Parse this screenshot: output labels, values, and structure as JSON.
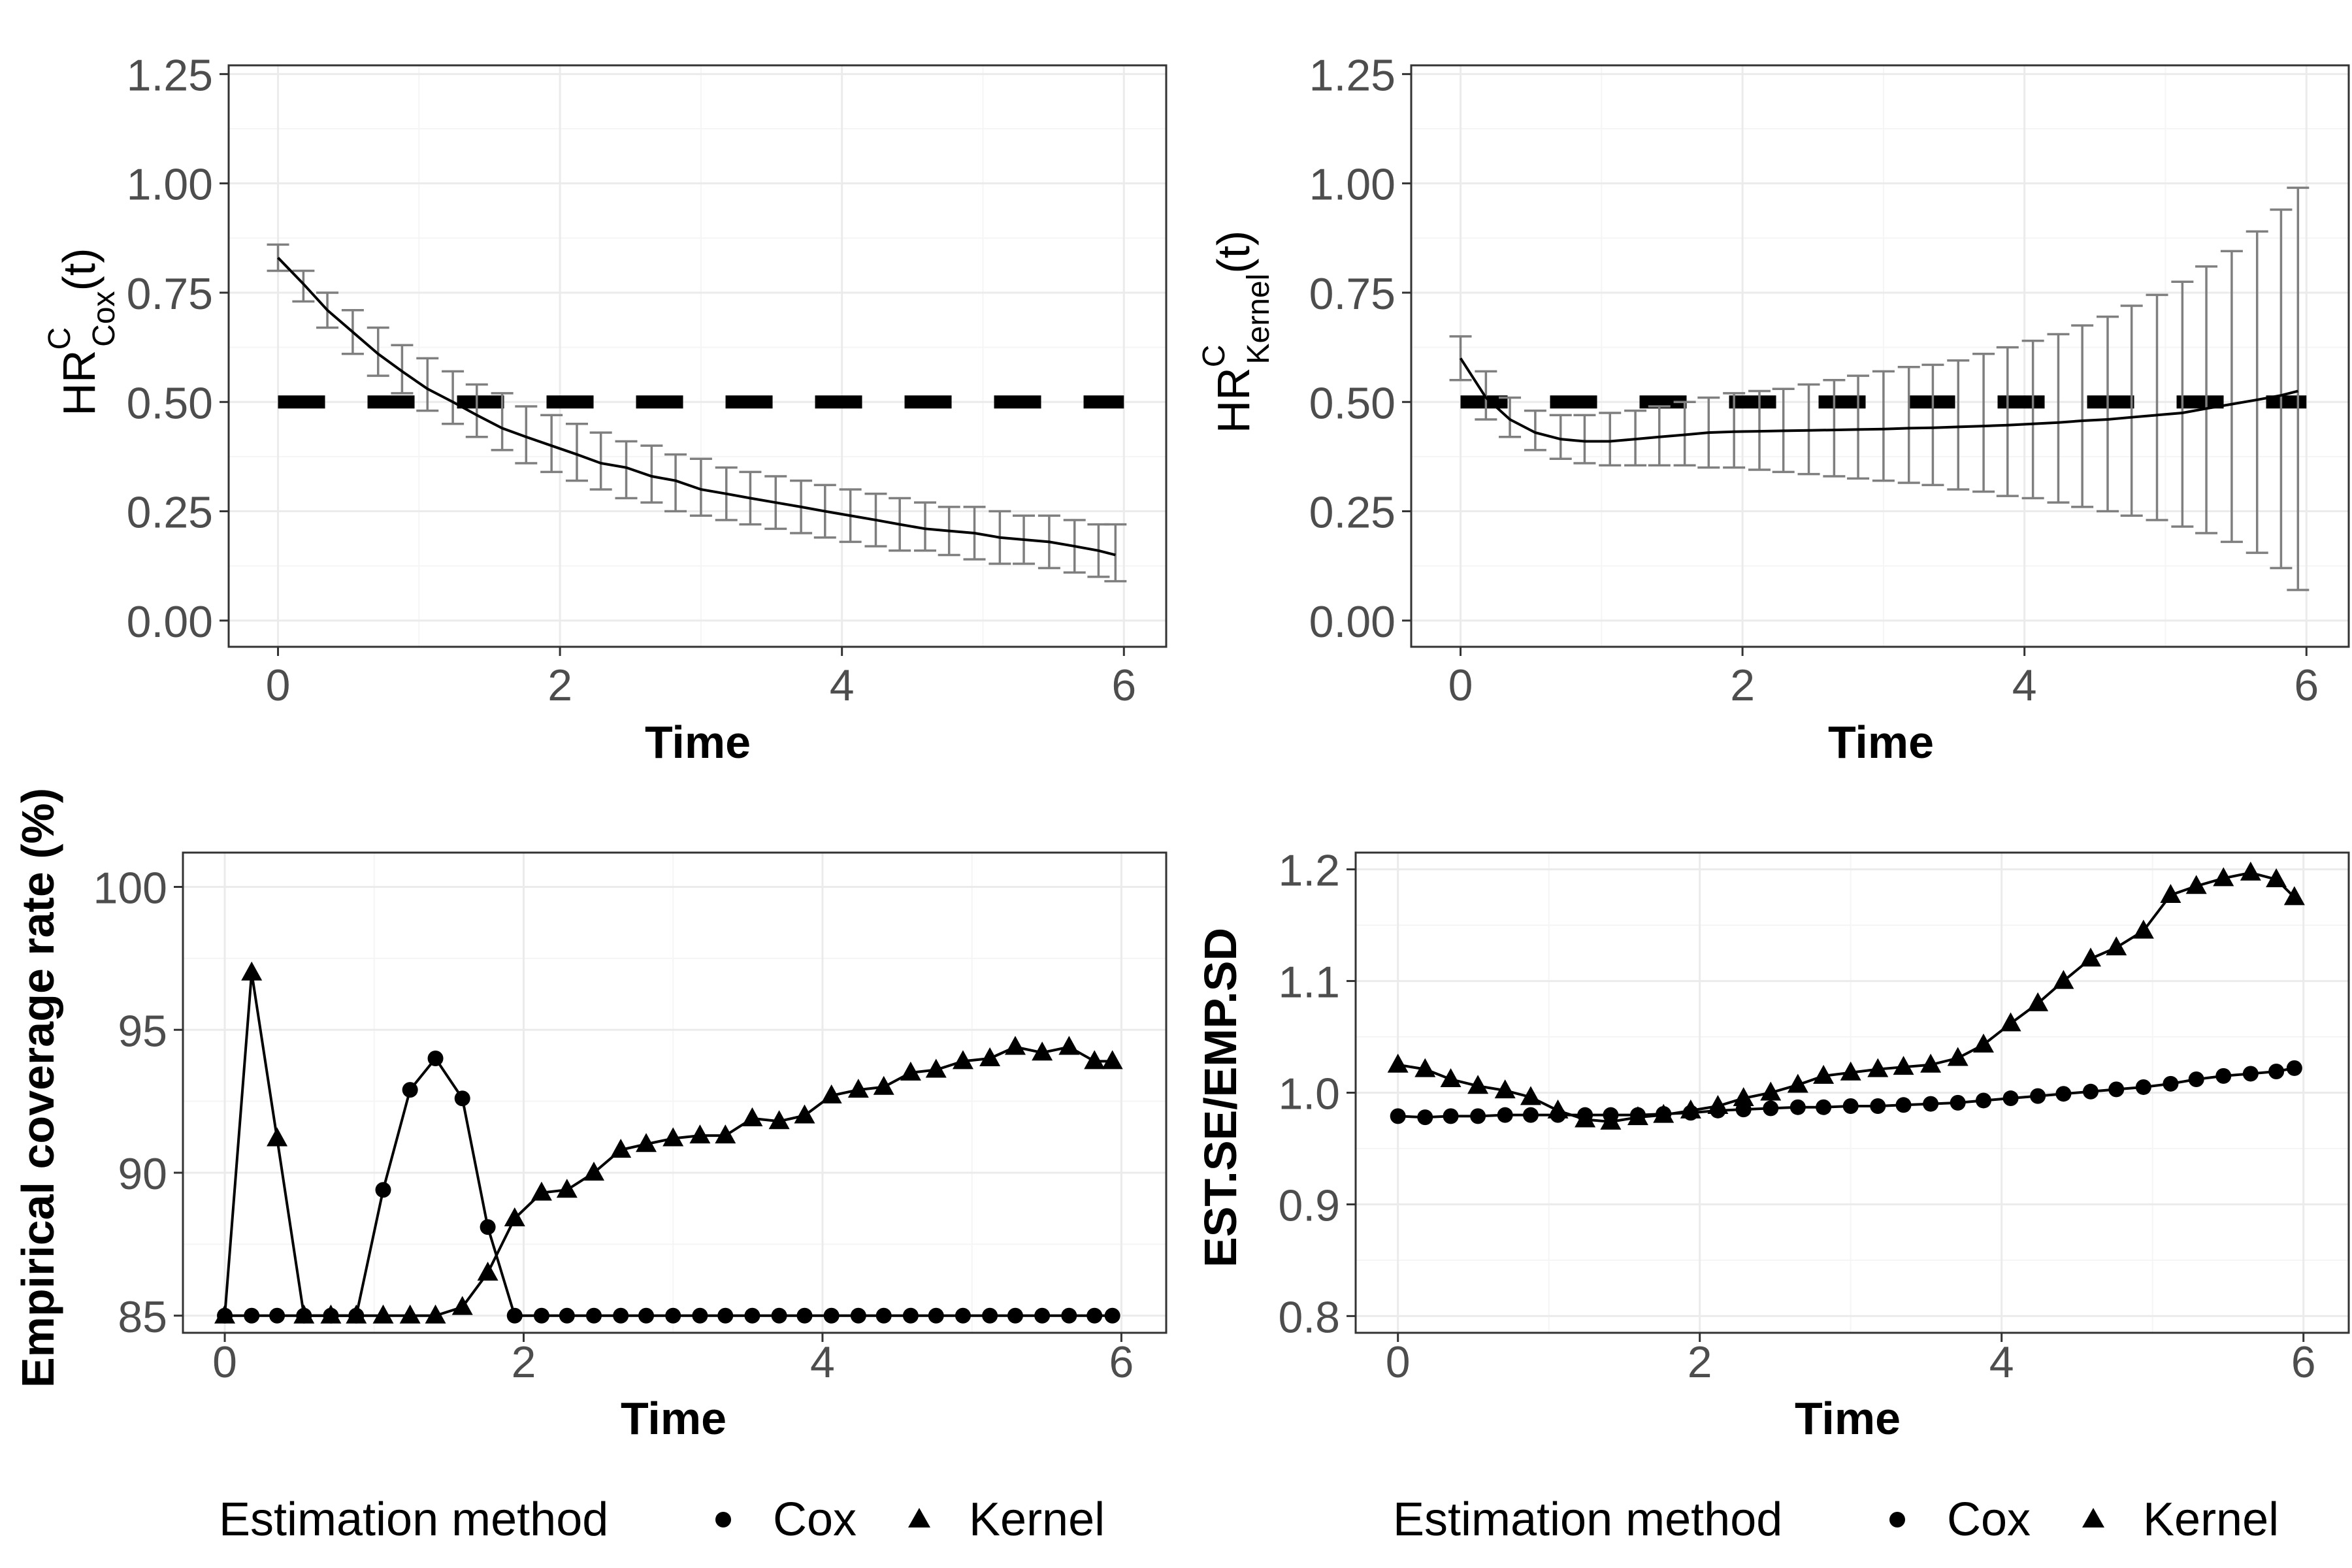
{
  "colors": {
    "line": "#000000",
    "errorbar": "#7f7f7f",
    "grid_major": "#ebebeb",
    "grid_minor": "#f5f5f5",
    "panel_border": "#333333",
    "tick_text": "#4d4d4d",
    "reference": "#000000"
  },
  "chart_data": [
    {
      "type": "line",
      "panel": "top-left",
      "xlabel": "Time",
      "ylabel": {
        "base": "HR",
        "superscript": "C",
        "subscript": "Cox",
        "suffix": "(t)"
      },
      "xlim": [
        -0.35,
        6.3
      ],
      "ylim": [
        -0.06,
        1.27
      ],
      "x_ticks": [
        0,
        2,
        4,
        6
      ],
      "x_tick_labels": [
        "0",
        "2",
        "4",
        "6"
      ],
      "y_ticks": [
        0,
        0.25,
        0.5,
        0.75,
        1.0,
        1.25
      ],
      "y_tick_labels": [
        "0.00",
        "0.25",
        "0.50",
        "0.75",
        "1.00",
        "1.25"
      ],
      "reference_line": 0.5,
      "x": [
        0,
        0.18,
        0.35,
        0.53,
        0.71,
        0.88,
        1.06,
        1.24,
        1.41,
        1.59,
        1.76,
        1.94,
        2.12,
        2.29,
        2.47,
        2.65,
        2.82,
        3.0,
        3.18,
        3.35,
        3.53,
        3.71,
        3.88,
        4.06,
        4.24,
        4.41,
        4.59,
        4.76,
        4.94,
        5.12,
        5.29,
        5.47,
        5.65,
        5.82,
        5.94
      ],
      "series": [
        {
          "name": "estimate",
          "values": [
            0.83,
            0.77,
            0.71,
            0.66,
            0.61,
            0.57,
            0.53,
            0.5,
            0.47,
            0.44,
            0.42,
            0.4,
            0.38,
            0.36,
            0.35,
            0.33,
            0.32,
            0.3,
            0.29,
            0.28,
            0.27,
            0.26,
            0.25,
            0.24,
            0.23,
            0.22,
            0.21,
            0.205,
            0.2,
            0.19,
            0.185,
            0.18,
            0.17,
            0.16,
            0.15
          ]
        },
        {
          "name": "ci_lower",
          "values": [
            0.8,
            0.73,
            0.67,
            0.61,
            0.56,
            0.52,
            0.48,
            0.45,
            0.42,
            0.39,
            0.36,
            0.34,
            0.32,
            0.3,
            0.28,
            0.27,
            0.25,
            0.24,
            0.23,
            0.22,
            0.21,
            0.2,
            0.19,
            0.18,
            0.17,
            0.16,
            0.16,
            0.15,
            0.14,
            0.13,
            0.13,
            0.12,
            0.11,
            0.1,
            0.09
          ]
        },
        {
          "name": "ci_upper",
          "values": [
            0.86,
            0.8,
            0.75,
            0.71,
            0.67,
            0.63,
            0.6,
            0.57,
            0.54,
            0.52,
            0.49,
            0.47,
            0.45,
            0.43,
            0.41,
            0.4,
            0.38,
            0.37,
            0.35,
            0.34,
            0.33,
            0.32,
            0.31,
            0.3,
            0.29,
            0.28,
            0.27,
            0.26,
            0.26,
            0.25,
            0.24,
            0.24,
            0.23,
            0.22,
            0.22
          ]
        }
      ]
    },
    {
      "type": "line",
      "panel": "top-right",
      "xlabel": "Time",
      "ylabel": {
        "base": "HR",
        "superscript": "C",
        "subscript": "Kernel",
        "suffix": "(t)"
      },
      "xlim": [
        -0.35,
        6.3
      ],
      "ylim": [
        -0.06,
        1.27
      ],
      "x_ticks": [
        0,
        2,
        4,
        6
      ],
      "x_tick_labels": [
        "0",
        "2",
        "4",
        "6"
      ],
      "y_ticks": [
        0,
        0.25,
        0.5,
        0.75,
        1.0,
        1.25
      ],
      "y_tick_labels": [
        "0.00",
        "0.25",
        "0.50",
        "0.75",
        "1.00",
        "1.25"
      ],
      "reference_line": 0.5,
      "x": [
        0,
        0.18,
        0.35,
        0.53,
        0.71,
        0.88,
        1.06,
        1.24,
        1.41,
        1.59,
        1.76,
        1.94,
        2.12,
        2.29,
        2.47,
        2.65,
        2.82,
        3.0,
        3.18,
        3.35,
        3.53,
        3.71,
        3.88,
        4.06,
        4.24,
        4.41,
        4.59,
        4.76,
        4.94,
        5.12,
        5.29,
        5.47,
        5.65,
        5.82,
        5.94
      ],
      "series": [
        {
          "name": "estimate",
          "values": [
            0.6,
            0.51,
            0.46,
            0.43,
            0.415,
            0.41,
            0.41,
            0.415,
            0.42,
            0.425,
            0.43,
            0.432,
            0.433,
            0.434,
            0.435,
            0.436,
            0.437,
            0.438,
            0.44,
            0.441,
            0.443,
            0.445,
            0.447,
            0.45,
            0.453,
            0.457,
            0.46,
            0.465,
            0.47,
            0.475,
            0.485,
            0.495,
            0.505,
            0.515,
            0.525
          ]
        },
        {
          "name": "ci_lower",
          "values": [
            0.55,
            0.46,
            0.42,
            0.39,
            0.37,
            0.36,
            0.355,
            0.355,
            0.355,
            0.355,
            0.35,
            0.35,
            0.345,
            0.34,
            0.335,
            0.33,
            0.325,
            0.32,
            0.315,
            0.31,
            0.3,
            0.295,
            0.285,
            0.28,
            0.27,
            0.26,
            0.25,
            0.24,
            0.23,
            0.215,
            0.2,
            0.18,
            0.155,
            0.12,
            0.07
          ]
        },
        {
          "name": "ci_upper",
          "values": [
            0.65,
            0.57,
            0.51,
            0.48,
            0.47,
            0.47,
            0.475,
            0.48,
            0.49,
            0.5,
            0.51,
            0.52,
            0.525,
            0.53,
            0.54,
            0.55,
            0.56,
            0.57,
            0.58,
            0.585,
            0.595,
            0.61,
            0.625,
            0.64,
            0.655,
            0.675,
            0.695,
            0.72,
            0.745,
            0.775,
            0.81,
            0.845,
            0.89,
            0.94,
            0.99
          ]
        }
      ]
    },
    {
      "type": "line",
      "panel": "bottom-left",
      "xlabel": "Time",
      "ylabel": "Empirical coverage rate (%)",
      "xlim": [
        -0.28,
        6.3
      ],
      "ylim": [
        84.4,
        101.2
      ],
      "x_ticks": [
        0,
        2,
        4,
        6
      ],
      "x_tick_labels": [
        "0",
        "2",
        "4",
        "6"
      ],
      "y_ticks": [
        85,
        90,
        95,
        100
      ],
      "y_tick_labels": [
        "85",
        "90",
        "95",
        "100"
      ],
      "x": [
        0,
        0.18,
        0.35,
        0.53,
        0.71,
        0.88,
        1.06,
        1.24,
        1.41,
        1.59,
        1.76,
        1.94,
        2.12,
        2.29,
        2.47,
        2.65,
        2.82,
        3.0,
        3.18,
        3.35,
        3.53,
        3.71,
        3.88,
        4.06,
        4.24,
        4.41,
        4.59,
        4.76,
        4.94,
        5.12,
        5.29,
        5.47,
        5.65,
        5.82,
        5.94
      ],
      "series": [
        {
          "name": "Cox",
          "marker": "circle",
          "values": [
            85.0,
            85.0,
            85.0,
            85.0,
            85.0,
            85.0,
            89.4,
            92.9,
            94.0,
            92.6,
            88.1,
            85.0,
            85.0,
            85.0,
            85.0,
            85.0,
            85.0,
            85.0,
            85.0,
            85.0,
            85.0,
            85.0,
            85.0,
            85.0,
            85.0,
            85.0,
            85.0,
            85.0,
            85.0,
            85.0,
            85.0,
            85.0,
            85.0,
            85.0,
            85.0
          ]
        },
        {
          "name": "Kernel",
          "marker": "triangle",
          "values": [
            85.0,
            97.0,
            91.2,
            85.0,
            85.0,
            85.0,
            85.0,
            85.0,
            85.0,
            85.3,
            86.5,
            88.4,
            89.3,
            89.4,
            90.0,
            90.8,
            91.0,
            91.2,
            91.3,
            91.3,
            91.9,
            91.8,
            92.0,
            92.7,
            92.9,
            93.0,
            93.5,
            93.6,
            93.9,
            94.0,
            94.4,
            94.2,
            94.4,
            93.9,
            93.9
          ]
        }
      ]
    },
    {
      "type": "line",
      "panel": "bottom-right",
      "xlabel": "Time",
      "ylabel": "EST.SE/EMP.SD",
      "xlim": [
        -0.28,
        6.3
      ],
      "ylim": [
        0.785,
        1.215
      ],
      "x_ticks": [
        0,
        2,
        4,
        6
      ],
      "x_tick_labels": [
        "0",
        "2",
        "4",
        "6"
      ],
      "y_ticks": [
        0.8,
        0.9,
        1.0,
        1.1,
        1.2
      ],
      "y_tick_labels": [
        "0.8",
        "0.9",
        "1.0",
        "1.1",
        "1.2"
      ],
      "x": [
        0,
        0.18,
        0.35,
        0.53,
        0.71,
        0.88,
        1.06,
        1.24,
        1.41,
        1.59,
        1.76,
        1.94,
        2.12,
        2.29,
        2.47,
        2.65,
        2.82,
        3.0,
        3.18,
        3.35,
        3.53,
        3.71,
        3.88,
        4.06,
        4.24,
        4.41,
        4.59,
        4.76,
        4.94,
        5.12,
        5.29,
        5.47,
        5.65,
        5.82,
        5.94
      ],
      "series": [
        {
          "name": "Cox",
          "marker": "circle",
          "values": [
            0.979,
            0.978,
            0.979,
            0.979,
            0.98,
            0.98,
            0.98,
            0.98,
            0.98,
            0.98,
            0.981,
            0.982,
            0.984,
            0.985,
            0.986,
            0.987,
            0.987,
            0.988,
            0.988,
            0.989,
            0.99,
            0.991,
            0.993,
            0.995,
            0.997,
            0.999,
            1.001,
            1.003,
            1.005,
            1.008,
            1.012,
            1.015,
            1.017,
            1.019,
            1.022
          ]
        },
        {
          "name": "Kernel",
          "marker": "triangle",
          "values": [
            1.025,
            1.021,
            1.012,
            1.006,
            1.002,
            0.996,
            0.984,
            0.976,
            0.974,
            0.978,
            0.98,
            0.984,
            0.988,
            0.995,
            1.0,
            1.007,
            1.015,
            1.018,
            1.021,
            1.023,
            1.025,
            1.031,
            1.043,
            1.062,
            1.08,
            1.1,
            1.12,
            1.13,
            1.145,
            1.177,
            1.185,
            1.192,
            1.197,
            1.191,
            1.175
          ]
        }
      ]
    }
  ],
  "legends": [
    {
      "title": "Estimation method",
      "items": [
        {
          "label": "Cox",
          "marker": "circle"
        },
        {
          "label": "Kernel",
          "marker": "triangle"
        }
      ]
    },
    {
      "title": "Estimation method",
      "items": [
        {
          "label": "Cox",
          "marker": "circle"
        },
        {
          "label": "Kernel",
          "marker": "triangle"
        }
      ]
    }
  ]
}
